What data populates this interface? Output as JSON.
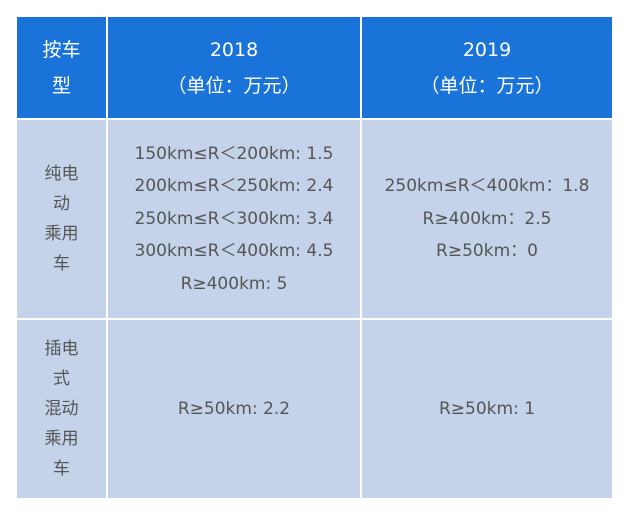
{
  "table": {
    "header": [
      [
        "按车",
        "型"
      ],
      [
        "2018",
        "（单位：万元）"
      ],
      [
        "2019",
        "（单位：万元）"
      ]
    ],
    "rows": [
      [
        [
          "纯电",
          "动",
          "乘用",
          "车"
        ],
        [
          "150km≤R＜200km: 1.5",
          "200km≤R＜250km: 2.4",
          "250km≤R＜300km: 3.4",
          "300km≤R＜400km: 4.5",
          "R≥400km: 5"
        ],
        [
          "250km≤R＜400km：1.8",
          "R≥400km：2.5",
          "R≥50km：0"
        ]
      ],
      [
        [
          "插电",
          "式",
          "混动",
          "乘用",
          "车"
        ],
        [
          "R≥50km: 2.2"
        ],
        [
          "R≥50km: 1"
        ]
      ]
    ]
  }
}
